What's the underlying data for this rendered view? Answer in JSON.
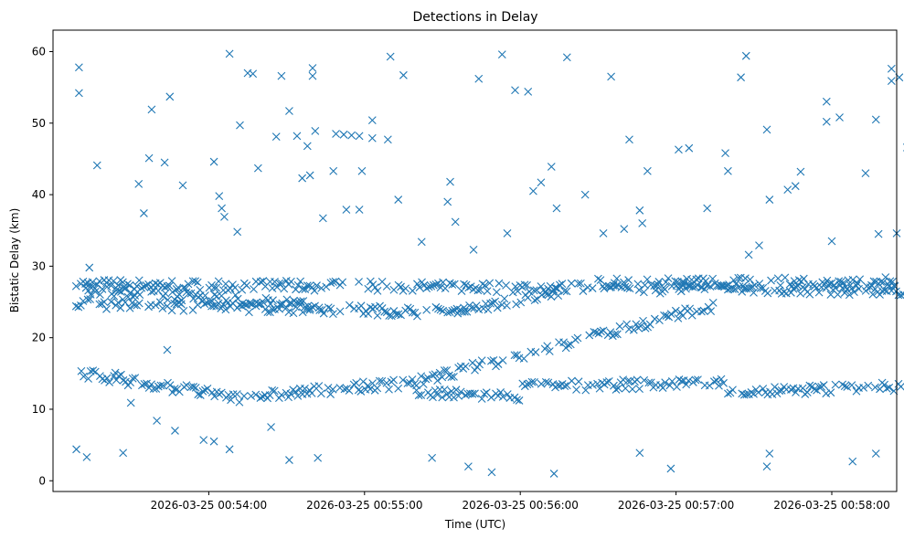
{
  "chart_data": {
    "type": "scatter",
    "title": "Detections in Delay",
    "xlabel": "Time (UTC)",
    "ylabel": "Bistatic Delay (km)",
    "x_type": "time",
    "xlim": [
      "2026-03-25 00:53:00",
      "2026-03-25 00:58:25"
    ],
    "ylim": [
      -1.5,
      63
    ],
    "x_ticks": [
      "2026-03-25 00:54:00",
      "2026-03-25 00:55:00",
      "2026-03-25 00:56:00",
      "2026-03-25 00:57:00",
      "2026-03-25 00:58:00"
    ],
    "y_ticks": [
      0,
      10,
      20,
      30,
      40,
      50,
      60
    ],
    "marker": "x",
    "grid": false,
    "colors": {
      "marker": "#1f77b4"
    },
    "series": [
      {
        "points": [
          [
            "2026-03-25 00:53:10",
            57.8
          ],
          [
            "2026-03-25 00:53:10",
            54.2
          ],
          [
            "2026-03-25 00:53:13",
            3.3
          ],
          [
            "2026-03-25 00:53:09",
            4.4
          ],
          [
            "2026-03-25 00:53:17",
            44.1
          ],
          [
            "2026-03-25 00:53:14",
            29.8
          ],
          [
            "2026-03-25 00:53:24",
            15.1
          ],
          [
            "2026-03-25 00:53:27",
            3.9
          ],
          [
            "2026-03-25 00:53:30",
            10.9
          ],
          [
            "2026-03-25 00:53:33",
            41.5
          ],
          [
            "2026-03-25 00:53:35",
            37.4
          ],
          [
            "2026-03-25 00:53:37",
            45.1
          ],
          [
            "2026-03-25 00:53:38",
            51.9
          ],
          [
            "2026-03-25 00:53:43",
            44.5
          ],
          [
            "2026-03-25 00:53:45",
            53.7
          ],
          [
            "2026-03-25 00:53:50",
            41.3
          ],
          [
            "2026-03-25 00:53:44",
            18.3
          ],
          [
            "2026-03-25 00:53:40",
            8.4
          ],
          [
            "2026-03-25 00:53:47",
            7.0
          ],
          [
            "2026-03-25 00:53:58",
            5.7
          ],
          [
            "2026-03-25 00:54:02",
            5.5
          ],
          [
            "2026-03-25 00:54:02",
            44.6
          ],
          [
            "2026-03-25 00:54:04",
            39.8
          ],
          [
            "2026-03-25 00:54:05",
            38.1
          ],
          [
            "2026-03-25 00:54:06",
            36.9
          ],
          [
            "2026-03-25 00:54:08",
            59.7
          ],
          [
            "2026-03-25 00:54:11",
            34.8
          ],
          [
            "2026-03-25 00:54:12",
            49.7
          ],
          [
            "2026-03-25 00:54:15",
            57.0
          ],
          [
            "2026-03-25 00:54:17",
            56.9
          ],
          [
            "2026-03-25 00:54:19",
            43.7
          ],
          [
            "2026-03-25 00:54:08",
            4.4
          ],
          [
            "2026-03-25 00:54:24",
            7.5
          ],
          [
            "2026-03-25 00:54:26",
            48.1
          ],
          [
            "2026-03-25 00:54:28",
            56.6
          ],
          [
            "2026-03-25 00:54:31",
            51.7
          ],
          [
            "2026-03-25 00:54:34",
            48.2
          ],
          [
            "2026-03-25 00:54:36",
            42.3
          ],
          [
            "2026-03-25 00:54:38",
            46.8
          ],
          [
            "2026-03-25 00:54:39",
            42.7
          ],
          [
            "2026-03-25 00:54:40",
            57.7
          ],
          [
            "2026-03-25 00:54:40",
            56.6
          ],
          [
            "2026-03-25 00:54:41",
            48.9
          ],
          [
            "2026-03-25 00:54:44",
            36.7
          ],
          [
            "2026-03-25 00:54:31",
            2.9
          ],
          [
            "2026-03-25 00:54:42",
            3.2
          ],
          [
            "2026-03-25 00:54:48",
            43.3
          ],
          [
            "2026-03-25 00:54:49",
            48.5
          ],
          [
            "2026-03-25 00:54:52",
            48.4
          ],
          [
            "2026-03-25 00:54:55",
            48.3
          ],
          [
            "2026-03-25 00:54:58",
            48.2
          ],
          [
            "2026-03-25 00:54:53",
            37.9
          ],
          [
            "2026-03-25 00:54:58",
            37.9
          ],
          [
            "2026-03-25 00:54:59",
            43.3
          ],
          [
            "2026-03-25 00:55:03",
            50.4
          ],
          [
            "2026-03-25 00:55:03",
            47.9
          ],
          [
            "2026-03-25 00:55:09",
            47.7
          ],
          [
            "2026-03-25 00:55:10",
            59.3
          ],
          [
            "2026-03-25 00:55:13",
            39.3
          ],
          [
            "2026-03-25 00:55:15",
            56.7
          ],
          [
            "2026-03-25 00:55:22",
            33.4
          ],
          [
            "2026-03-25 00:55:26",
            3.2
          ],
          [
            "2026-03-25 00:55:32",
            39.0
          ],
          [
            "2026-03-25 00:55:33",
            41.8
          ],
          [
            "2026-03-25 00:55:35",
            36.2
          ],
          [
            "2026-03-25 00:55:40",
            2.0
          ],
          [
            "2026-03-25 00:55:42",
            32.3
          ],
          [
            "2026-03-25 00:55:44",
            56.2
          ],
          [
            "2026-03-25 00:55:49",
            1.2
          ],
          [
            "2026-03-25 00:55:53",
            59.6
          ],
          [
            "2026-03-25 00:55:55",
            34.6
          ],
          [
            "2026-03-25 00:55:58",
            54.6
          ],
          [
            "2026-03-25 00:56:03",
            54.4
          ],
          [
            "2026-03-25 00:56:05",
            40.5
          ],
          [
            "2026-03-25 00:56:08",
            41.7
          ],
          [
            "2026-03-25 00:56:12",
            43.9
          ],
          [
            "2026-03-25 00:56:14",
            38.1
          ],
          [
            "2026-03-25 00:56:18",
            59.2
          ],
          [
            "2026-03-25 00:56:13",
            1.0
          ],
          [
            "2026-03-25 00:56:25",
            40.0
          ],
          [
            "2026-03-25 00:56:32",
            34.6
          ],
          [
            "2026-03-25 00:56:35",
            56.5
          ],
          [
            "2026-03-25 00:56:40",
            35.2
          ],
          [
            "2026-03-25 00:56:42",
            47.7
          ],
          [
            "2026-03-25 00:56:46",
            37.8
          ],
          [
            "2026-03-25 00:56:47",
            36.0
          ],
          [
            "2026-03-25 00:56:49",
            43.3
          ],
          [
            "2026-03-25 00:56:46",
            3.9
          ],
          [
            "2026-03-25 00:56:58",
            1.7
          ],
          [
            "2026-03-25 00:57:01",
            46.3
          ],
          [
            "2026-03-25 00:57:05",
            46.5
          ],
          [
            "2026-03-25 00:57:12",
            38.1
          ],
          [
            "2026-03-25 00:57:19",
            45.8
          ],
          [
            "2026-03-25 00:57:20",
            43.3
          ],
          [
            "2026-03-25 00:57:25",
            56.4
          ],
          [
            "2026-03-25 00:57:27",
            59.4
          ],
          [
            "2026-03-25 00:57:28",
            31.6
          ],
          [
            "2026-03-25 00:57:32",
            32.9
          ],
          [
            "2026-03-25 00:57:35",
            49.1
          ],
          [
            "2026-03-25 00:57:36",
            39.3
          ],
          [
            "2026-03-25 00:57:35",
            2.0
          ],
          [
            "2026-03-25 00:57:36",
            3.8
          ],
          [
            "2026-03-25 00:57:43",
            40.7
          ],
          [
            "2026-03-25 00:57:46",
            41.2
          ],
          [
            "2026-03-25 00:57:48",
            43.2
          ],
          [
            "2026-03-25 00:57:58",
            53.0
          ],
          [
            "2026-03-25 00:57:58",
            50.2
          ],
          [
            "2026-03-25 00:58:00",
            33.5
          ],
          [
            "2026-03-25 00:58:03",
            50.8
          ],
          [
            "2026-03-25 00:58:08",
            2.7
          ],
          [
            "2026-03-25 00:58:13",
            43.0
          ],
          [
            "2026-03-25 00:58:17",
            50.5
          ],
          [
            "2026-03-25 00:58:17",
            3.8
          ],
          [
            "2026-03-25 00:58:18",
            34.5
          ],
          [
            "2026-03-25 00:58:23",
            57.6
          ],
          [
            "2026-03-25 00:58:23",
            55.9
          ],
          [
            "2026-03-25 00:58:26",
            56.4
          ],
          [
            "2026-03-25 00:58:25",
            34.6
          ],
          [
            "2026-03-25 00:58:29",
            46.6
          ]
        ],
        "tracks": [
          {
            "x_start": "2026-03-25 00:53:08",
            "y_start": 27.5,
            "x_end": "2026-03-25 00:58:28",
            "y_end": 26.6
          },
          {
            "x_start": "2026-03-25 00:53:08",
            "y_start": 24.8,
            "x_end": "2026-03-25 00:55:40",
            "y_end": 23.5
          },
          {
            "x_start": "2026-03-25 00:53:10",
            "y_start": 26.8,
            "x_end": "2026-03-25 00:54:45",
            "y_end": 24.4
          },
          {
            "x_start": "2026-03-25 00:53:10",
            "y_start": 15.1,
            "x_end": "2026-03-25 00:54:10",
            "y_end": 11.6
          },
          {
            "x_start": "2026-03-25 00:54:10",
            "y_start": 11.6,
            "x_end": "2026-03-25 00:55:20",
            "y_end": 13.8
          },
          {
            "x_start": "2026-03-25 00:55:20",
            "y_start": 13.8,
            "x_end": "2026-03-25 00:57:15",
            "y_end": 24.5
          },
          {
            "x_start": "2026-03-25 00:55:20",
            "y_start": 12.2,
            "x_end": "2026-03-25 00:56:00",
            "y_end": 11.8
          },
          {
            "x_start": "2026-03-25 00:56:00",
            "y_start": 13.2,
            "x_end": "2026-03-25 00:57:20",
            "y_end": 13.7
          },
          {
            "x_start": "2026-03-25 00:57:20",
            "y_start": 12.3,
            "x_end": "2026-03-25 00:58:28",
            "y_end": 13.2
          },
          {
            "x_start": "2026-03-25 00:55:35",
            "y_start": 23.6,
            "x_end": "2026-03-25 00:56:15",
            "y_end": 26.5
          },
          {
            "x_start": "2026-03-25 00:56:30",
            "y_start": 27.6,
            "x_end": "2026-03-25 00:58:25",
            "y_end": 27.8
          }
        ]
      }
    ]
  }
}
